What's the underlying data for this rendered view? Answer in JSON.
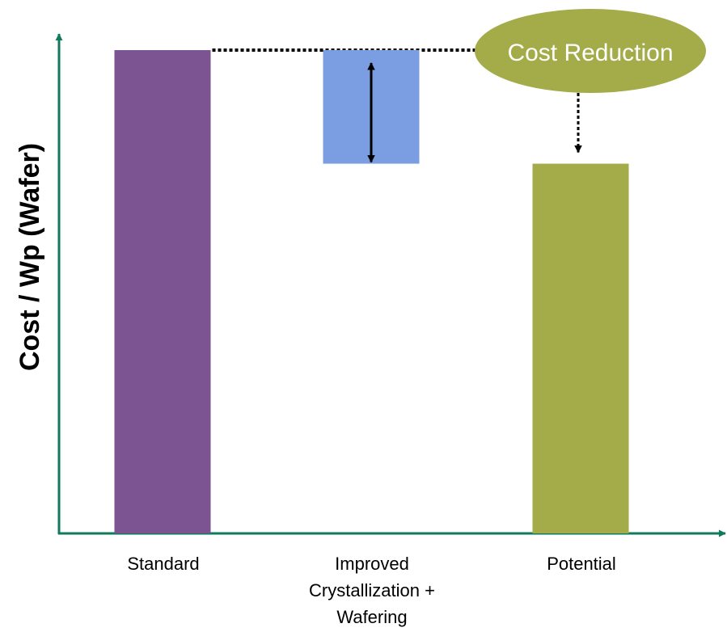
{
  "chart_data": {
    "type": "bar",
    "subtype": "waterfall",
    "ylabel": "Cost / Wp (Wafer)",
    "xlabel": "",
    "ylim": [
      0,
      1
    ],
    "categories": [
      [
        "Standard"
      ],
      [
        "Improved",
        "Crystallization +",
        "Wafering"
      ],
      [
        "Potential"
      ]
    ],
    "bars": [
      {
        "base": 0,
        "value": 1.0
      },
      {
        "base": 0.765,
        "value": 0.235
      },
      {
        "base": 0,
        "value": 0.765
      }
    ],
    "annotation": {
      "text": "Cost Reduction"
    },
    "grid": false,
    "legend": "none"
  },
  "colors": {
    "axis": "#0f7a5c",
    "bars": [
      "#7b5491",
      "#7b9de2",
      "#a3ac48"
    ],
    "callout": "#a3ac48",
    "arrows": "#000000"
  }
}
